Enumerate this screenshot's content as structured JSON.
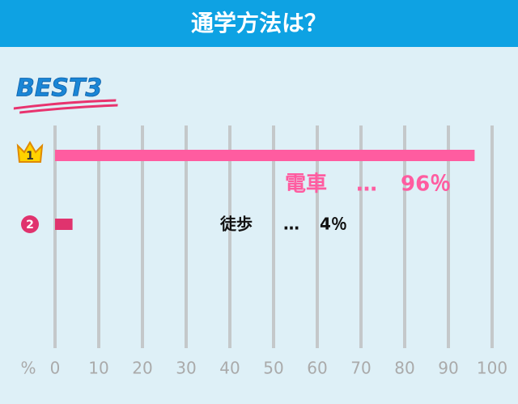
{
  "chart_data": {
    "type": "bar",
    "orientation": "horizontal",
    "title": "通学方法は？",
    "badge": "BEST3",
    "ranks": [
      "1",
      "2"
    ],
    "categories": [
      "電車",
      "徒歩"
    ],
    "values": [
      96,
      4
    ],
    "value_labels": [
      "96％",
      "4％"
    ],
    "separator": "…",
    "colors": [
      "#ff5ca0",
      "#e0336e"
    ],
    "label_colors": [
      "#ff5ca0",
      "#111111"
    ],
    "xlabel": "%",
    "xlim": [
      0,
      100
    ],
    "xticks": [
      0,
      10,
      20,
      30,
      40,
      50,
      60,
      70,
      80,
      90,
      100
    ],
    "grid": true
  }
}
